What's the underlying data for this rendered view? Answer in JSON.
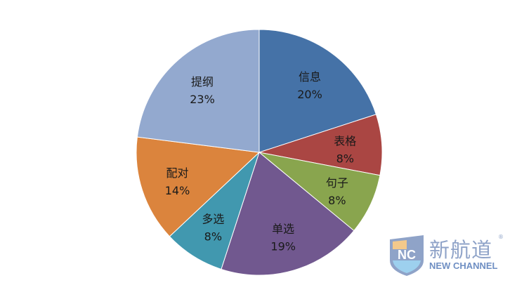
{
  "chart_data": {
    "type": "pie",
    "start": "top, clockwise",
    "slices": [
      {
        "label": "信息",
        "value": 20,
        "percent_label": "20%",
        "color": "#4572A7"
      },
      {
        "label": "表格",
        "value": 8,
        "percent_label": "8%",
        "color": "#AA4643"
      },
      {
        "label": "句子",
        "value": 8,
        "percent_label": "8%",
        "color": "#89A54E"
      },
      {
        "label": "单选",
        "value": 19,
        "percent_label": "19%",
        "color": "#71588F"
      },
      {
        "label": "多选",
        "value": 8,
        "percent_label": "8%",
        "color": "#4198AF"
      },
      {
        "label": "配对",
        "value": 14,
        "percent_label": "14%",
        "color": "#DB843D"
      },
      {
        "label": "提纲",
        "value": 23,
        "percent_label": "23%",
        "color": "#93A9CF"
      }
    ]
  },
  "watermark": {
    "cn": "新航道",
    "en": "NEW CHANNEL",
    "mark": "NC",
    "reg": "®"
  }
}
